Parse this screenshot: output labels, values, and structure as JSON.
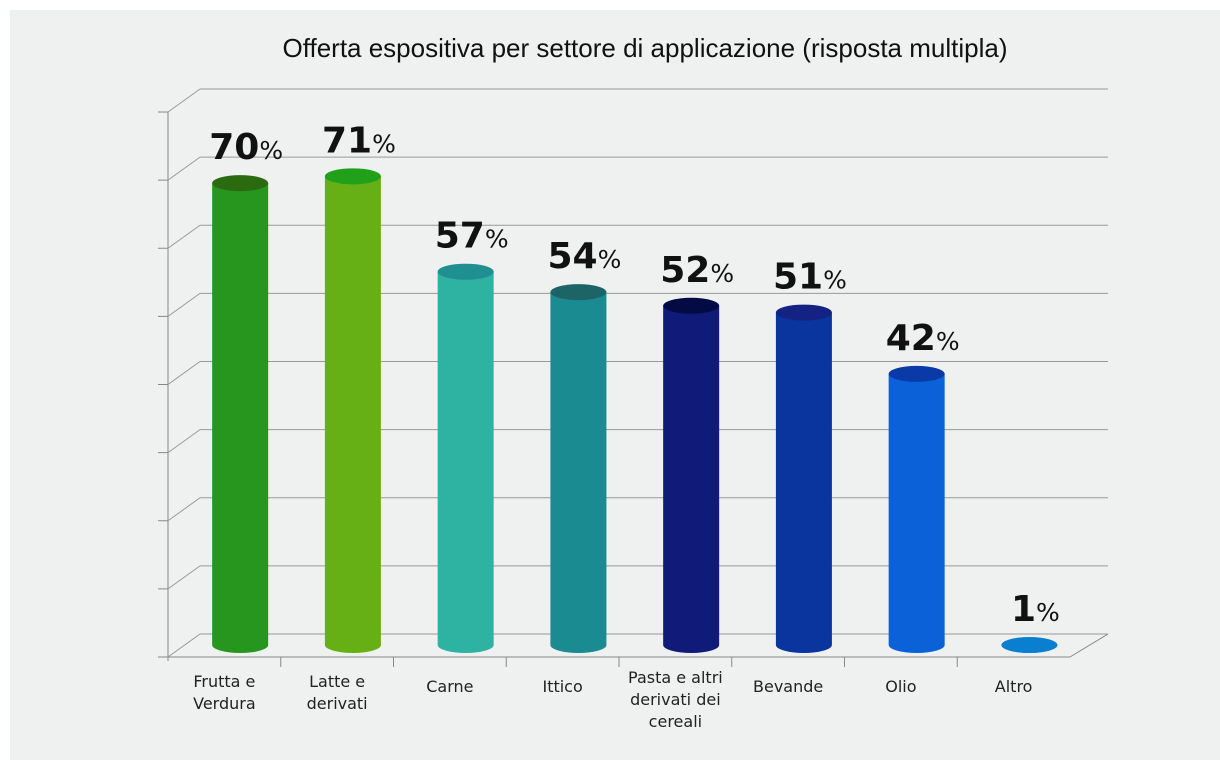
{
  "chart_data": {
    "type": "bar",
    "title": "Offerta espositiva per settore di applicazione (risposta multipla)",
    "categories": [
      "Frutta e Verdura",
      "Latte e derivati",
      "Carne",
      "Ittico",
      "Pasta e altri derivati dei cereali",
      "Bevande",
      "Olio",
      "Altro"
    ],
    "values": [
      70,
      71,
      57,
      54,
      52,
      51,
      42,
      1
    ],
    "value_labels": [
      "70%",
      "71%",
      "57%",
      "54%",
      "52%",
      "51%",
      "42%",
      "1%"
    ],
    "colors": [
      "#26961f",
      "#66b016",
      "#2eb2a2",
      "#1a8b91",
      "#101a78",
      "#0a359e",
      "#0b62d8",
      "#12a4e8"
    ],
    "top_colors": [
      "#2b6a10",
      "#21a019",
      "#1f8f92",
      "#1d6466",
      "#040a44",
      "#142383",
      "#0a3aa8",
      "#0a7fd0"
    ],
    "ylim": [
      0,
      80
    ],
    "yticks": [
      0,
      10,
      20,
      30,
      40,
      50,
      60,
      70,
      80
    ],
    "grid": true
  }
}
